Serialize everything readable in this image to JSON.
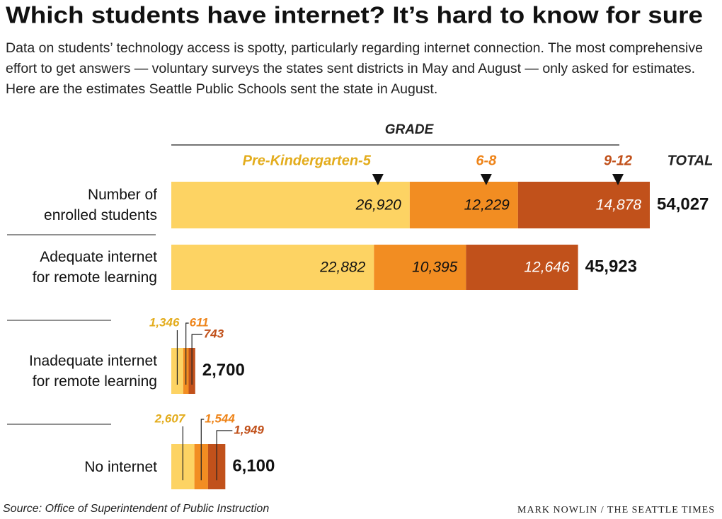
{
  "title": "Which students have internet? It’s hard to know for sure",
  "subtitle": "Data on students’ technology access is spotty, particularly regarding internet connection. The most comprehensive effort to get answers — voluntary surveys the states sent districts in May and August — only asked for estimates. Here are the estimates Seattle Public Schools sent the state in August.",
  "source": "Source: Office of Superintendent of Public Instruction",
  "credit": "MARK NOWLIN / THE SEATTLE TIMES",
  "chart_data": {
    "type": "stacked-bar-horizontal",
    "legend_title": "GRADE",
    "total_title": "TOTAL",
    "categories": [
      "Number of\nenrolled students",
      "Adequate internet\nfor remote learning",
      "Inadequate internet\nfor remote learning",
      "No internet"
    ],
    "series": [
      {
        "name": "Pre-Kindergarten-5",
        "color": "#fdd363",
        "label_color": "#e3ac1c",
        "values": [
          26920,
          22882,
          1346,
          2607
        ],
        "value_labels": [
          "26,920",
          "22,882",
          "1,346",
          "2,607"
        ]
      },
      {
        "name": "6-8",
        "color": "#f28d22",
        "label_color": "#ee8419",
        "values": [
          12229,
          10395,
          611,
          1544
        ],
        "value_labels": [
          "12,229",
          "10,395",
          "611",
          "1,544"
        ]
      },
      {
        "name": "9-12",
        "color": "#c1511b",
        "label_color": "#c1511b",
        "values": [
          14878,
          12646,
          743,
          1949
        ],
        "value_labels": [
          "14,878",
          "12,646",
          "743",
          "1,949"
        ]
      }
    ],
    "totals": [
      54027,
      45923,
      2700,
      6100
    ],
    "total_labels": [
      "54,027",
      "45,923",
      "2,700",
      "6,100"
    ]
  }
}
